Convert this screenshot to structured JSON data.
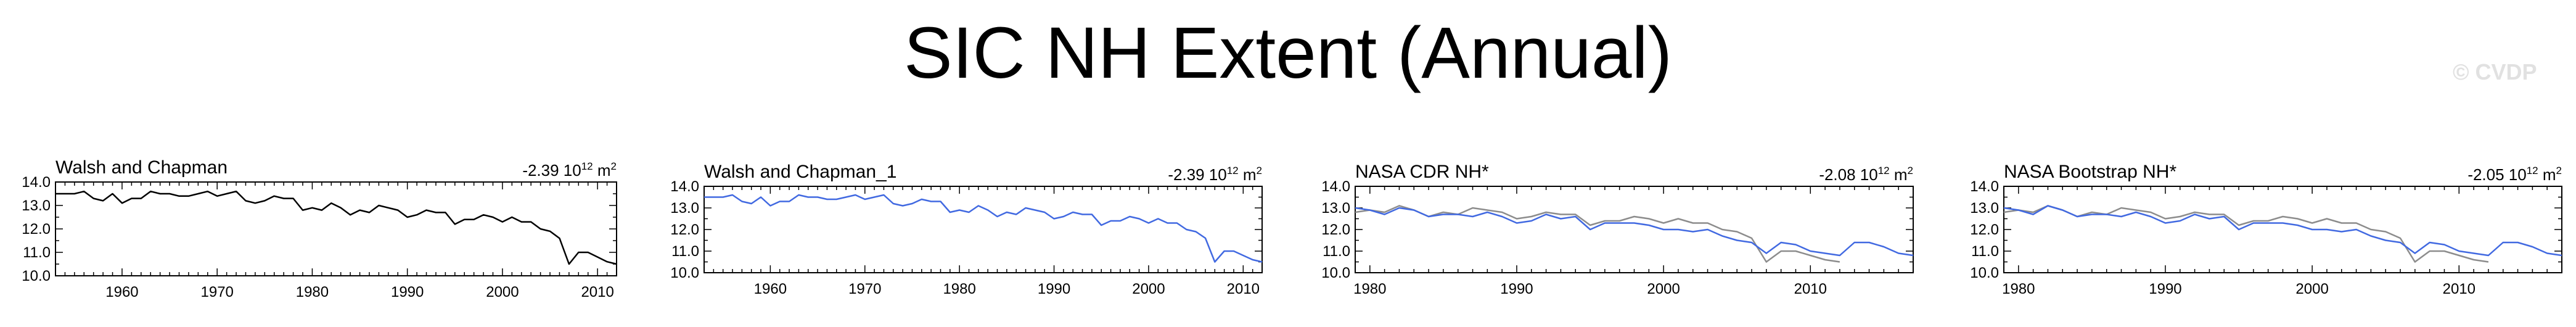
{
  "page": {
    "title": "SIC NH Extent (Annual)",
    "watermark": "© CVDP"
  },
  "colors": {
    "blue": "#4169e1",
    "black": "#000000",
    "gray": "#8c8c8c"
  },
  "chart_data": [
    {
      "type": "line",
      "title": "Walsh and Chapman",
      "trend_value": "-2.39",
      "trend_unit_base": "10",
      "trend_unit_exp": "12",
      "trend_unit_tail": "m",
      "trend_unit_tail_exp": "2",
      "xlim": [
        1953,
        2012
      ],
      "ylim": [
        10.0,
        14.0
      ],
      "xticks": [
        1960,
        1970,
        1980,
        1990,
        2000,
        2010
      ],
      "yticks": [
        10.0,
        11.0,
        12.0,
        13.0,
        14.0
      ],
      "series": [
        {
          "color": "#000000",
          "x": [
            1953,
            1954,
            1955,
            1956,
            1957,
            1958,
            1959,
            1960,
            1961,
            1962,
            1963,
            1964,
            1965,
            1966,
            1967,
            1968,
            1969,
            1970,
            1971,
            1972,
            1973,
            1974,
            1975,
            1976,
            1977,
            1978,
            1979,
            1980,
            1981,
            1982,
            1983,
            1984,
            1985,
            1986,
            1987,
            1988,
            1989,
            1990,
            1991,
            1992,
            1993,
            1994,
            1995,
            1996,
            1997,
            1998,
            1999,
            2000,
            2001,
            2002,
            2003,
            2004,
            2005,
            2006,
            2007,
            2008,
            2009,
            2010,
            2011,
            2012
          ],
          "values": [
            13.5,
            13.5,
            13.5,
            13.6,
            13.3,
            13.2,
            13.5,
            13.1,
            13.3,
            13.3,
            13.6,
            13.5,
            13.5,
            13.4,
            13.4,
            13.5,
            13.6,
            13.4,
            13.5,
            13.6,
            13.2,
            13.1,
            13.2,
            13.4,
            13.3,
            13.3,
            12.8,
            12.9,
            12.8,
            13.1,
            12.9,
            12.6,
            12.8,
            12.7,
            13.0,
            12.9,
            12.8,
            12.5,
            12.6,
            12.8,
            12.7,
            12.7,
            12.2,
            12.4,
            12.4,
            12.6,
            12.5,
            12.3,
            12.5,
            12.3,
            12.3,
            12.0,
            11.9,
            11.6,
            10.5,
            11.0,
            11.0,
            10.8,
            10.6,
            10.5
          ]
        }
      ]
    },
    {
      "type": "line",
      "title": "Walsh and Chapman_1",
      "trend_value": "-2.39",
      "trend_unit_base": "10",
      "trend_unit_exp": "12",
      "trend_unit_tail": "m",
      "trend_unit_tail_exp": "2",
      "xlim": [
        1953,
        2012
      ],
      "ylim": [
        10.0,
        14.0
      ],
      "xticks": [
        1960,
        1970,
        1980,
        1990,
        2000,
        2010
      ],
      "yticks": [
        10.0,
        11.0,
        12.0,
        13.0,
        14.0
      ],
      "series": [
        {
          "color": "#4169e1",
          "x": [
            1953,
            1954,
            1955,
            1956,
            1957,
            1958,
            1959,
            1960,
            1961,
            1962,
            1963,
            1964,
            1965,
            1966,
            1967,
            1968,
            1969,
            1970,
            1971,
            1972,
            1973,
            1974,
            1975,
            1976,
            1977,
            1978,
            1979,
            1980,
            1981,
            1982,
            1983,
            1984,
            1985,
            1986,
            1987,
            1988,
            1989,
            1990,
            1991,
            1992,
            1993,
            1994,
            1995,
            1996,
            1997,
            1998,
            1999,
            2000,
            2001,
            2002,
            2003,
            2004,
            2005,
            2006,
            2007,
            2008,
            2009,
            2010,
            2011,
            2012
          ],
          "values": [
            13.5,
            13.5,
            13.5,
            13.6,
            13.3,
            13.2,
            13.5,
            13.1,
            13.3,
            13.3,
            13.6,
            13.5,
            13.5,
            13.4,
            13.4,
            13.5,
            13.6,
            13.4,
            13.5,
            13.6,
            13.2,
            13.1,
            13.2,
            13.4,
            13.3,
            13.3,
            12.8,
            12.9,
            12.8,
            13.1,
            12.9,
            12.6,
            12.8,
            12.7,
            13.0,
            12.9,
            12.8,
            12.5,
            12.6,
            12.8,
            12.7,
            12.7,
            12.2,
            12.4,
            12.4,
            12.6,
            12.5,
            12.3,
            12.5,
            12.3,
            12.3,
            12.0,
            11.9,
            11.6,
            10.5,
            11.0,
            11.0,
            10.8,
            10.6,
            10.5
          ]
        }
      ]
    },
    {
      "type": "line",
      "title": "NASA CDR NH*",
      "trend_value": "-2.08",
      "trend_unit_base": "10",
      "trend_unit_exp": "12",
      "trend_unit_tail": "m",
      "trend_unit_tail_exp": "2",
      "xlim": [
        1979,
        2017
      ],
      "ylim": [
        10.0,
        14.0
      ],
      "xticks": [
        1980,
        1990,
        2000,
        2010
      ],
      "yticks": [
        10.0,
        11.0,
        12.0,
        13.0,
        14.0
      ],
      "series": [
        {
          "color": "#8c8c8c",
          "x": [
            1979,
            1980,
            1981,
            1982,
            1983,
            1984,
            1985,
            1986,
            1987,
            1988,
            1989,
            1990,
            1991,
            1992,
            1993,
            1994,
            1995,
            1996,
            1997,
            1998,
            1999,
            2000,
            2001,
            2002,
            2003,
            2004,
            2005,
            2006,
            2007,
            2008,
            2009,
            2010,
            2011,
            2012
          ],
          "values": [
            12.8,
            12.9,
            12.8,
            13.1,
            12.9,
            12.6,
            12.8,
            12.7,
            13.0,
            12.9,
            12.8,
            12.5,
            12.6,
            12.8,
            12.7,
            12.7,
            12.2,
            12.4,
            12.4,
            12.6,
            12.5,
            12.3,
            12.5,
            12.3,
            12.3,
            12.0,
            11.9,
            11.6,
            10.5,
            11.0,
            11.0,
            10.8,
            10.6,
            10.5
          ]
        },
        {
          "color": "#4169e1",
          "x": [
            1979,
            1980,
            1981,
            1982,
            1983,
            1984,
            1985,
            1986,
            1987,
            1988,
            1989,
            1990,
            1991,
            1992,
            1993,
            1994,
            1995,
            1996,
            1997,
            1998,
            1999,
            2000,
            2001,
            2002,
            2003,
            2004,
            2005,
            2006,
            2007,
            2008,
            2009,
            2010,
            2011,
            2012,
            2013,
            2014,
            2015,
            2016,
            2017
          ],
          "values": [
            13.0,
            12.9,
            12.7,
            13.0,
            12.9,
            12.6,
            12.7,
            12.7,
            12.6,
            12.8,
            12.6,
            12.3,
            12.4,
            12.7,
            12.5,
            12.6,
            12.0,
            12.3,
            12.3,
            12.3,
            12.2,
            12.0,
            12.0,
            11.9,
            12.0,
            11.7,
            11.5,
            11.4,
            10.9,
            11.4,
            11.3,
            11.0,
            10.9,
            10.8,
            11.4,
            11.4,
            11.2,
            10.9,
            10.8
          ]
        }
      ]
    },
    {
      "type": "line",
      "title": "NASA Bootstrap NH*",
      "trend_value": "-2.05",
      "trend_unit_base": "10",
      "trend_unit_exp": "12",
      "trend_unit_tail": "m",
      "trend_unit_tail_exp": "2",
      "xlim": [
        1979,
        2017
      ],
      "ylim": [
        10.0,
        14.0
      ],
      "xticks": [
        1980,
        1990,
        2000,
        2010
      ],
      "yticks": [
        10.0,
        11.0,
        12.0,
        13.0,
        14.0
      ],
      "series": [
        {
          "color": "#8c8c8c",
          "x": [
            1979,
            1980,
            1981,
            1982,
            1983,
            1984,
            1985,
            1986,
            1987,
            1988,
            1989,
            1990,
            1991,
            1992,
            1993,
            1994,
            1995,
            1996,
            1997,
            1998,
            1999,
            2000,
            2001,
            2002,
            2003,
            2004,
            2005,
            2006,
            2007,
            2008,
            2009,
            2010,
            2011,
            2012
          ],
          "values": [
            12.8,
            12.9,
            12.8,
            13.1,
            12.9,
            12.6,
            12.8,
            12.7,
            13.0,
            12.9,
            12.8,
            12.5,
            12.6,
            12.8,
            12.7,
            12.7,
            12.2,
            12.4,
            12.4,
            12.6,
            12.5,
            12.3,
            12.5,
            12.3,
            12.3,
            12.0,
            11.9,
            11.6,
            10.5,
            11.0,
            11.0,
            10.8,
            10.6,
            10.5
          ]
        },
        {
          "color": "#4169e1",
          "x": [
            1979,
            1980,
            1981,
            1982,
            1983,
            1984,
            1985,
            1986,
            1987,
            1988,
            1989,
            1990,
            1991,
            1992,
            1993,
            1994,
            1995,
            1996,
            1997,
            1998,
            1999,
            2000,
            2001,
            2002,
            2003,
            2004,
            2005,
            2006,
            2007,
            2008,
            2009,
            2010,
            2011,
            2012,
            2013,
            2014,
            2015,
            2016,
            2017
          ],
          "values": [
            13.0,
            12.9,
            12.7,
            13.1,
            12.9,
            12.6,
            12.7,
            12.7,
            12.6,
            12.8,
            12.6,
            12.3,
            12.4,
            12.7,
            12.5,
            12.6,
            12.0,
            12.3,
            12.3,
            12.3,
            12.2,
            12.0,
            12.0,
            11.9,
            12.0,
            11.7,
            11.5,
            11.4,
            10.9,
            11.4,
            11.3,
            11.0,
            10.9,
            10.8,
            11.4,
            11.4,
            11.2,
            10.9,
            10.8
          ]
        }
      ]
    }
  ]
}
